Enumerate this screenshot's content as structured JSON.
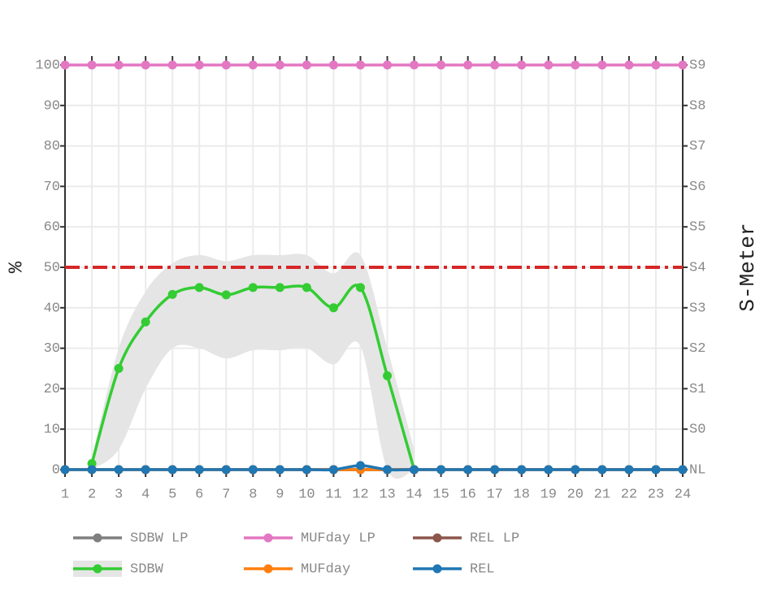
{
  "chart_data": {
    "type": "line",
    "x": [
      1,
      2,
      3,
      4,
      5,
      6,
      7,
      8,
      9,
      10,
      11,
      12,
      13,
      14,
      15,
      16,
      17,
      18,
      19,
      20,
      21,
      22,
      23,
      24
    ],
    "xlim": [
      1,
      24
    ],
    "xticks": [
      1,
      2,
      3,
      4,
      5,
      6,
      7,
      8,
      9,
      10,
      11,
      12,
      13,
      14,
      15,
      16,
      17,
      18,
      19,
      20,
      21,
      22,
      23,
      24
    ],
    "ylim": [
      0,
      100
    ],
    "yticks": [
      0,
      10,
      20,
      30,
      40,
      50,
      60,
      70,
      80,
      90,
      100
    ],
    "y2lim": [
      0,
      100
    ],
    "y2ticks": [
      {
        "value": 0,
        "label": "NL"
      },
      {
        "value": 10,
        "label": "S0"
      },
      {
        "value": 20,
        "label": "S1"
      },
      {
        "value": 30,
        "label": "S2"
      },
      {
        "value": 40,
        "label": "S3"
      },
      {
        "value": 50,
        "label": "S4"
      },
      {
        "value": 60,
        "label": "S5"
      },
      {
        "value": 70,
        "label": "S6"
      },
      {
        "value": 80,
        "label": "S7"
      },
      {
        "value": 90,
        "label": "S8"
      },
      {
        "value": 100,
        "label": "S9"
      }
    ],
    "ylabel": "%",
    "y2label": "S-Meter",
    "grid": true,
    "threshold": 50,
    "threshold_color": "#d62728",
    "band_color": "#e5e5e5",
    "series": [
      {
        "name": "SDBW LP",
        "color": "#7f7f7f",
        "values": [
          0,
          0,
          0,
          0,
          0,
          0,
          0,
          0,
          0,
          0,
          0,
          0,
          0,
          0,
          0,
          0,
          0,
          0,
          0,
          0,
          0,
          0,
          0,
          0
        ]
      },
      {
        "name": "MUFday LP",
        "color": "#e377c2",
        "values": [
          100,
          100,
          100,
          100,
          100,
          100,
          100,
          100,
          100,
          100,
          100,
          100,
          100,
          100,
          100,
          100,
          100,
          100,
          100,
          100,
          100,
          100,
          100,
          100
        ]
      },
      {
        "name": "REL LP",
        "color": "#8c564b",
        "values": [
          0,
          0,
          0,
          0,
          0,
          0,
          0,
          0,
          0,
          0,
          0,
          0,
          0,
          0,
          0,
          0,
          0,
          0,
          0,
          0,
          0,
          0,
          0,
          0
        ]
      },
      {
        "name": "SDBW",
        "color": "#33cc33",
        "values": [
          null,
          1.5,
          25,
          36.5,
          43.3,
          45,
          43.2,
          45,
          45,
          45,
          40,
          45,
          23.2,
          0,
          null,
          null,
          null,
          null,
          null,
          null,
          null,
          null,
          null,
          null
        ],
        "band_upper": [
          null,
          3,
          30,
          44,
          51,
          53,
          51.5,
          53,
          53,
          53,
          48.5,
          53,
          30,
          5,
          null,
          null,
          null,
          null,
          null,
          null,
          null,
          null,
          null,
          null
        ],
        "band_lower": [
          null,
          0,
          5,
          20,
          30,
          30,
          27.5,
          29.5,
          29.5,
          30,
          26,
          30.5,
          0,
          0,
          null,
          null,
          null,
          null,
          null,
          null,
          null,
          null,
          null,
          null
        ]
      },
      {
        "name": "MUFday",
        "color": "#ff7f0e",
        "values": [
          0,
          0,
          0,
          0,
          0,
          0,
          0,
          0,
          0,
          0,
          0,
          0,
          0,
          0,
          0,
          0,
          0,
          0,
          0,
          0,
          0,
          0,
          0,
          0
        ]
      },
      {
        "name": "REL",
        "color": "#1f77b4",
        "values": [
          0,
          0,
          0,
          0,
          0,
          0,
          0,
          0,
          0,
          0,
          0,
          1,
          0,
          0,
          0,
          0,
          0,
          0,
          0,
          0,
          0,
          0,
          0,
          0
        ]
      }
    ]
  }
}
